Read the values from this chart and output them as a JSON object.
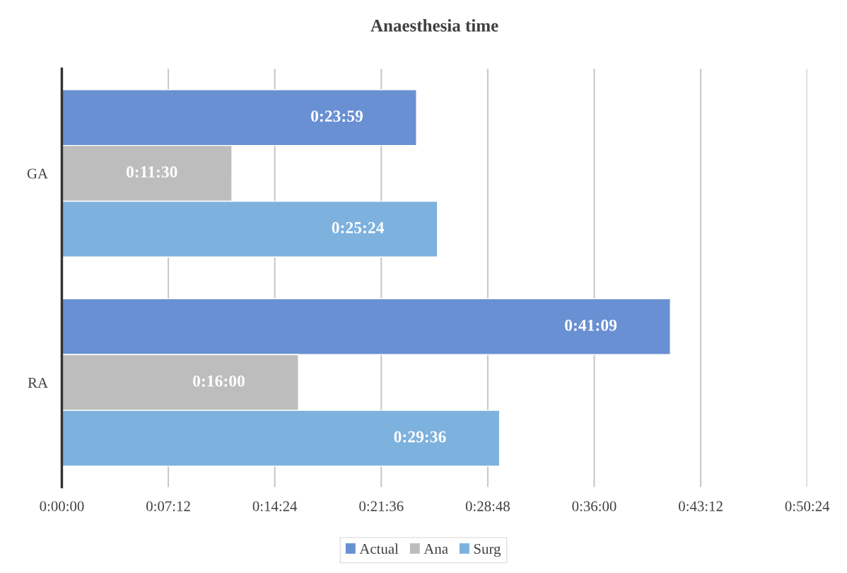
{
  "chart_data": {
    "type": "bar",
    "orientation": "horizontal",
    "title": "Anaesthesia time",
    "categories": [
      "GA",
      "RA"
    ],
    "series": [
      {
        "name": "Actual",
        "color": "#6990d2",
        "values": [
          0.39972,
          0.68583
        ],
        "value_labels": [
          "0:23:59",
          "0:41:09"
        ]
      },
      {
        "name": "Ana",
        "color": "#bdbdbd",
        "values": [
          0.19167,
          0.26667
        ],
        "value_labels": [
          "0:11:30",
          "0:16:00"
        ]
      },
      {
        "name": "Surg",
        "color": "#7db1de",
        "values": [
          0.42333,
          0.49333
        ],
        "value_labels": [
          "0:25:24",
          "0:29:36"
        ]
      }
    ],
    "xlim": [
      0,
      0.84
    ],
    "xticks": [
      {
        "value": 0,
        "label": "0:00:00"
      },
      {
        "value": 0.12,
        "label": "0:07:12"
      },
      {
        "value": 0.24,
        "label": "0:14:24"
      },
      {
        "value": 0.36,
        "label": "0:21:36"
      },
      {
        "value": 0.48,
        "label": "0:28:48"
      },
      {
        "value": 0.6,
        "label": "0:36:00"
      },
      {
        "value": 0.72,
        "label": "0:43:12"
      },
      {
        "value": 0.84,
        "label": "0:50:24"
      }
    ],
    "grid": "x",
    "legend": "bottom"
  }
}
